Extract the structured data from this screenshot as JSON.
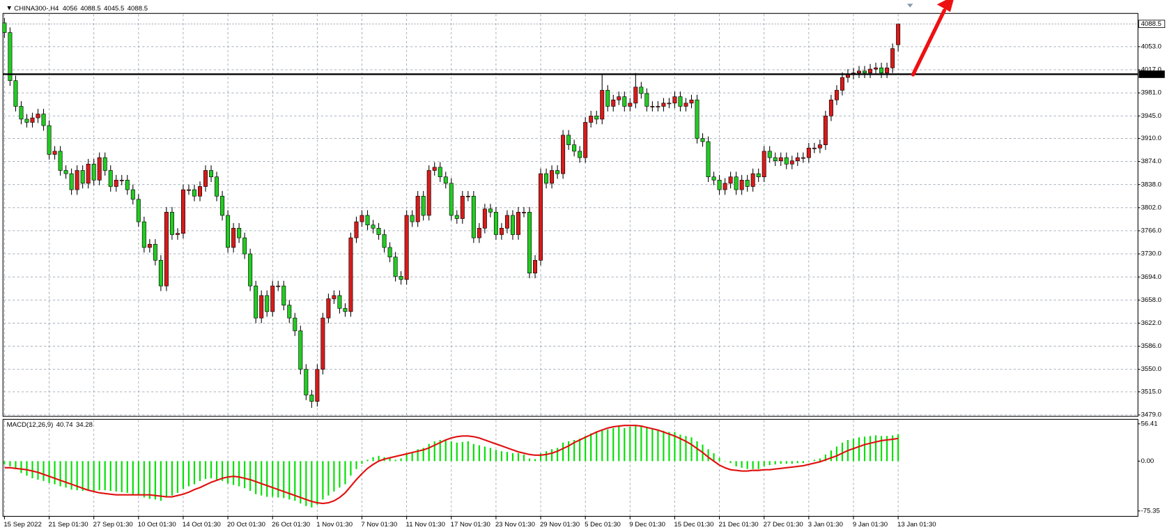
{
  "chart_data": [
    {
      "type": "candlestick",
      "title": "CHINA300-,H4",
      "grid": true,
      "up_color": "#d81b1b",
      "down_color": "#22cc22",
      "categories": [
        "15 Sep 2022",
        null,
        null,
        null,
        null,
        null,
        null,
        null,
        "21 Sep 01:30",
        null,
        null,
        null,
        null,
        null,
        null,
        null,
        "27 Sep 01:30",
        null,
        null,
        null,
        null,
        null,
        null,
        null,
        "10 Oct 01:30",
        null,
        null,
        null,
        null,
        null,
        null,
        null,
        "14 Oct 01:30",
        null,
        null,
        null,
        null,
        null,
        null,
        null,
        "20 Oct 01:30",
        null,
        null,
        null,
        null,
        null,
        null,
        null,
        "26 Oct 01:30",
        null,
        null,
        null,
        null,
        null,
        null,
        null,
        "1 Nov 01:30",
        null,
        null,
        null,
        null,
        null,
        null,
        null,
        "7 Nov 01:30",
        null,
        null,
        null,
        null,
        null,
        null,
        null,
        "11 Nov 01:30",
        null,
        null,
        null,
        null,
        null,
        null,
        null,
        "17 Nov 01:30",
        null,
        null,
        null,
        null,
        null,
        null,
        null,
        "23 Nov 01:30",
        null,
        null,
        null,
        null,
        null,
        null,
        null,
        "29 Nov 01:30",
        null,
        null,
        null,
        null,
        null,
        null,
        null,
        "5 Dec 01:30",
        null,
        null,
        null,
        null,
        null,
        null,
        null,
        "9 Dec 01:30",
        null,
        null,
        null,
        null,
        null,
        null,
        null,
        "15 Dec 01:30",
        null,
        null,
        null,
        null,
        null,
        null,
        null,
        "21 Dec 01:30",
        null,
        null,
        null,
        null,
        null,
        null,
        null,
        "27 Dec 01:30",
        null,
        null,
        null,
        null,
        null,
        null,
        null,
        "3 Jan 01:30",
        null,
        null,
        null,
        null,
        null,
        null,
        null,
        "9 Jan 01:30",
        null,
        null,
        null,
        null,
        null,
        null,
        null,
        "13 Jan 01:30"
      ],
      "open": [
        4090,
        4075,
        4000,
        3960,
        3940,
        3935,
        3942,
        3948,
        3930,
        3885,
        3890,
        3860,
        3855,
        3830,
        3860,
        3840,
        3870,
        3845,
        3880,
        3860,
        3835,
        3845,
        3845,
        3830,
        3815,
        3780,
        3740,
        3745,
        3720,
        3680,
        3795,
        3760,
        3762,
        3830,
        3830,
        3820,
        3835,
        3860,
        3850,
        3820,
        3790,
        3740,
        3770,
        3755,
        3730,
        3680,
        3630,
        3665,
        3640,
        3680,
        3680,
        3650,
        3630,
        3610,
        3550,
        3510,
        3500,
        3550,
        3630,
        3660,
        3665,
        3645,
        3640,
        3755,
        3780,
        3790,
        3775,
        3770,
        3760,
        3740,
        3725,
        3695,
        3690,
        3790,
        3780,
        3820,
        3790,
        3860,
        3865,
        3850,
        3840,
        3790,
        3785,
        3820,
        3820,
        3755,
        3770,
        3800,
        3795,
        3760,
        3770,
        3790,
        3760,
        3795,
        3795,
        3700,
        3720,
        3855,
        3840,
        3860,
        3855,
        3915,
        3900,
        3890,
        3880,
        3935,
        3945,
        3940,
        3985,
        3960,
        3970,
        3975,
        3960,
        3965,
        3990,
        3980,
        3960,
        3960,
        3960,
        3965,
        3965,
        3975,
        3960,
        3965,
        3970,
        3910,
        3905,
        3850,
        3845,
        3830,
        3840,
        3850,
        3830,
        3845,
        3835,
        3855,
        3850,
        3890,
        3880,
        3875,
        3880,
        3870,
        3875,
        3880,
        3880,
        3895,
        3895,
        3900,
        3945,
        3970,
        3985,
        4005,
        4010,
        4012,
        4015,
        4012,
        4018,
        4020,
        4012,
        4020,
        4056
      ],
      "high": [
        4098,
        4083,
        4008,
        3968,
        3948,
        3950,
        3956,
        3956,
        3938,
        3898,
        3898,
        3868,
        3863,
        3868,
        3868,
        3878,
        3878,
        3888,
        3888,
        3868,
        3853,
        3853,
        3853,
        3838,
        3823,
        3788,
        3753,
        3753,
        3728,
        3803,
        3803,
        3770,
        3838,
        3838,
        3838,
        3843,
        3868,
        3868,
        3858,
        3828,
        3798,
        3778,
        3778,
        3763,
        3738,
        3688,
        3673,
        3673,
        3688,
        3688,
        3688,
        3658,
        3638,
        3618,
        3558,
        3518,
        3558,
        3638,
        3668,
        3673,
        3673,
        3653,
        3763,
        3788,
        3798,
        3798,
        3783,
        3778,
        3768,
        3748,
        3733,
        3703,
        3798,
        3798,
        3828,
        3828,
        3868,
        3873,
        3873,
        3858,
        3848,
        3798,
        3828,
        3828,
        3828,
        3778,
        3808,
        3808,
        3803,
        3778,
        3798,
        3798,
        3803,
        3803,
        3803,
        3728,
        3863,
        3863,
        3868,
        3868,
        3923,
        3923,
        3908,
        3898,
        3943,
        3953,
        3953,
        4010,
        3993,
        3978,
        3983,
        3983,
        3973,
        4012,
        3998,
        3988,
        3968,
        3968,
        3973,
        3973,
        3983,
        3983,
        3973,
        3978,
        3978,
        3918,
        3913,
        3858,
        3853,
        3848,
        3858,
        3858,
        3853,
        3853,
        3863,
        3863,
        3898,
        3898,
        3888,
        3888,
        3888,
        3883,
        3888,
        3888,
        3903,
        3903,
        3908,
        3953,
        3978,
        3993,
        4013,
        4018,
        4020,
        4023,
        4023,
        4026,
        4028,
        4028,
        4028,
        4058,
        4088.5
      ],
      "low": [
        4067,
        3992,
        3952,
        3932,
        3927,
        3927,
        3934,
        3922,
        3877,
        3877,
        3852,
        3847,
        3822,
        3822,
        3832,
        3832,
        3837,
        3837,
        3852,
        3827,
        3827,
        3837,
        3822,
        3807,
        3772,
        3732,
        3732,
        3712,
        3672,
        3672,
        3752,
        3752,
        3754,
        3822,
        3812,
        3812,
        3827,
        3842,
        3812,
        3782,
        3732,
        3732,
        3747,
        3722,
        3672,
        3622,
        3622,
        3632,
        3632,
        3672,
        3642,
        3622,
        3602,
        3542,
        3502,
        3490,
        3492,
        3542,
        3622,
        3652,
        3637,
        3632,
        3632,
        3747,
        3772,
        3767,
        3762,
        3752,
        3732,
        3717,
        3687,
        3682,
        3682,
        3772,
        3772,
        3782,
        3782,
        3852,
        3842,
        3832,
        3782,
        3777,
        3777,
        3812,
        3747,
        3747,
        3762,
        3787,
        3752,
        3752,
        3762,
        3752,
        3752,
        3787,
        3692,
        3692,
        3712,
        3832,
        3832,
        3847,
        3847,
        3892,
        3882,
        3872,
        3872,
        3927,
        3932,
        3932,
        3952,
        3952,
        3962,
        3952,
        3952,
        3957,
        3972,
        3952,
        3952,
        3952,
        3952,
        3957,
        3957,
        3952,
        3952,
        3957,
        3902,
        3897,
        3842,
        3837,
        3822,
        3822,
        3832,
        3822,
        3822,
        3827,
        3827,
        3842,
        3842,
        3872,
        3867,
        3867,
        3862,
        3862,
        3867,
        3872,
        3872,
        3887,
        3887,
        3892,
        3937,
        3962,
        3977,
        3997,
        4002,
        4004,
        4004,
        4004,
        4010,
        4004,
        4004,
        4012,
        4045.5
      ],
      "close": [
        4075,
        4000,
        3960,
        3940,
        3935,
        3942,
        3948,
        3930,
        3885,
        3890,
        3860,
        3855,
        3830,
        3860,
        3840,
        3870,
        3845,
        3880,
        3860,
        3835,
        3845,
        3845,
        3830,
        3815,
        3780,
        3740,
        3745,
        3720,
        3680,
        3795,
        3760,
        3762,
        3830,
        3830,
        3820,
        3835,
        3860,
        3850,
        3820,
        3790,
        3740,
        3770,
        3755,
        3730,
        3680,
        3630,
        3665,
        3640,
        3680,
        3680,
        3650,
        3630,
        3610,
        3550,
        3510,
        3500,
        3550,
        3630,
        3660,
        3665,
        3645,
        3640,
        3755,
        3780,
        3790,
        3775,
        3770,
        3760,
        3740,
        3725,
        3695,
        3690,
        3790,
        3780,
        3820,
        3790,
        3860,
        3865,
        3850,
        3840,
        3790,
        3785,
        3820,
        3820,
        3755,
        3770,
        3800,
        3795,
        3760,
        3770,
        3790,
        3760,
        3795,
        3795,
        3700,
        3720,
        3855,
        3840,
        3860,
        3855,
        3915,
        3900,
        3890,
        3880,
        3935,
        3945,
        3940,
        3985,
        3960,
        3970,
        3975,
        3960,
        3965,
        3990,
        3980,
        3960,
        3960,
        3960,
        3965,
        3965,
        3975,
        3960,
        3965,
        3970,
        3910,
        3905,
        3850,
        3845,
        3830,
        3840,
        3850,
        3830,
        3845,
        3835,
        3855,
        3850,
        3890,
        3880,
        3875,
        3880,
        3870,
        3875,
        3880,
        3880,
        3895,
        3895,
        3900,
        3945,
        3970,
        3985,
        4005,
        4010,
        4012,
        4015,
        4012,
        4018,
        4020,
        4012,
        4020,
        4050,
        4088.5
      ],
      "ylim": [
        3476.7,
        4104.8
      ],
      "yticks": [
        {
          "value": 4053,
          "label": "4053.0"
        },
        {
          "value": 4017,
          "label": "4017.0"
        },
        {
          "value": 3981,
          "label": "3981.0"
        },
        {
          "value": 3945,
          "label": "3945.0"
        },
        {
          "value": 3910,
          "label": "3910.0"
        },
        {
          "value": 3874,
          "label": "3874.0"
        },
        {
          "value": 3838,
          "label": "3838.0"
        },
        {
          "value": 3802,
          "label": "3802.0"
        },
        {
          "value": 3766,
          "label": "3766.0"
        },
        {
          "value": 3730,
          "label": "3730.0"
        },
        {
          "value": 3694,
          "label": "3694.0"
        },
        {
          "value": 3658,
          "label": "3658.0"
        },
        {
          "value": 3622,
          "label": "3622.0"
        },
        {
          "value": 3586,
          "label": "3586.0"
        },
        {
          "value": 3550,
          "label": "3550.0"
        },
        {
          "value": 3515,
          "label": "3515.0"
        },
        {
          "value": 3479,
          "label": "3479.0"
        }
      ],
      "hline": {
        "value": 4010,
        "label": "4010.0"
      }
    },
    {
      "type": "macd",
      "title": "MACD(12,26,9)",
      "series": [
        {
          "name": "MACD",
          "color": "#00e000",
          "values": [
            -5,
            -8,
            -12,
            -18,
            -22,
            -26,
            -28,
            -30,
            -33,
            -35,
            -38,
            -40,
            -43,
            -44,
            -45,
            -44,
            -45,
            -44,
            -44,
            -45,
            -46,
            -47,
            -48,
            -50,
            -52,
            -55,
            -57,
            -58,
            -60,
            -55,
            -52,
            -48,
            -42,
            -38,
            -35,
            -30,
            -27,
            -26,
            -28,
            -30,
            -34,
            -36,
            -38,
            -41,
            -45,
            -50,
            -52,
            -54,
            -54,
            -55,
            -56,
            -58,
            -60,
            -64,
            -68,
            -70,
            -66,
            -58,
            -52,
            -46,
            -40,
            -35,
            -22,
            -12,
            -4,
            2,
            6,
            8,
            6,
            4,
            2,
            4,
            10,
            14,
            18,
            20,
            26,
            30,
            32,
            32,
            30,
            28,
            29,
            30,
            26,
            24,
            22,
            20,
            17,
            15,
            14,
            12,
            12,
            10,
            4,
            3,
            12,
            15,
            18,
            20,
            28,
            30,
            32,
            34,
            38,
            42,
            44,
            48,
            48,
            50,
            52,
            50,
            52,
            54,
            54,
            52,
            50,
            48,
            46,
            44,
            44,
            40,
            38,
            36,
            30,
            25,
            18,
            12,
            5,
            0,
            -3,
            -8,
            -10,
            -12,
            -12,
            -12,
            -8,
            -6,
            -5,
            -4,
            -4,
            -4,
            -3,
            -3,
            0,
            2,
            4,
            10,
            16,
            22,
            28,
            32,
            34,
            36,
            37,
            38,
            39,
            38,
            38,
            39,
            40.74
          ]
        },
        {
          "name": "Signal",
          "color": "#e01010",
          "values": [
            -10,
            -10,
            -11,
            -12,
            -13,
            -15,
            -17,
            -20,
            -23,
            -26,
            -29,
            -32,
            -35,
            -38,
            -41,
            -44,
            -46,
            -48,
            -49,
            -50,
            -51,
            -51,
            -51,
            -51,
            -51,
            -51,
            -51,
            -52,
            -53,
            -54,
            -54,
            -52,
            -50,
            -47,
            -43,
            -40,
            -36,
            -32,
            -29,
            -26,
            -24,
            -23,
            -24,
            -26,
            -28,
            -31,
            -34,
            -37,
            -40,
            -43,
            -46,
            -49,
            -52,
            -55,
            -58,
            -61,
            -63,
            -64,
            -63,
            -60,
            -55,
            -48,
            -38,
            -28,
            -19,
            -11,
            -5,
            0,
            3,
            5,
            7,
            9,
            11,
            13,
            15,
            17,
            20,
            24,
            28,
            32,
            35,
            37,
            38,
            38,
            37,
            35,
            32,
            29,
            26,
            23,
            20,
            17,
            14,
            12,
            10,
            9,
            9,
            10,
            12,
            15,
            19,
            23,
            28,
            32,
            36,
            40,
            44,
            47,
            50,
            52,
            53,
            54,
            54,
            54,
            53,
            51,
            49,
            47,
            44,
            41,
            38,
            34,
            30,
            25,
            19,
            13,
            6,
            0,
            -6,
            -10,
            -13,
            -14,
            -15,
            -15,
            -14,
            -14,
            -13,
            -13,
            -12,
            -11,
            -10,
            -9,
            -8,
            -7,
            -5,
            -3,
            -1,
            2,
            5,
            8,
            12,
            16,
            19,
            22,
            25,
            27,
            29,
            31,
            32,
            33,
            34.28
          ]
        }
      ],
      "ylim": [
        -83.5,
        63.2
      ],
      "yticks": [
        56.41,
        {
          "value": 0,
          "label": "0.00"
        },
        -75.35
      ]
    }
  ]
}
